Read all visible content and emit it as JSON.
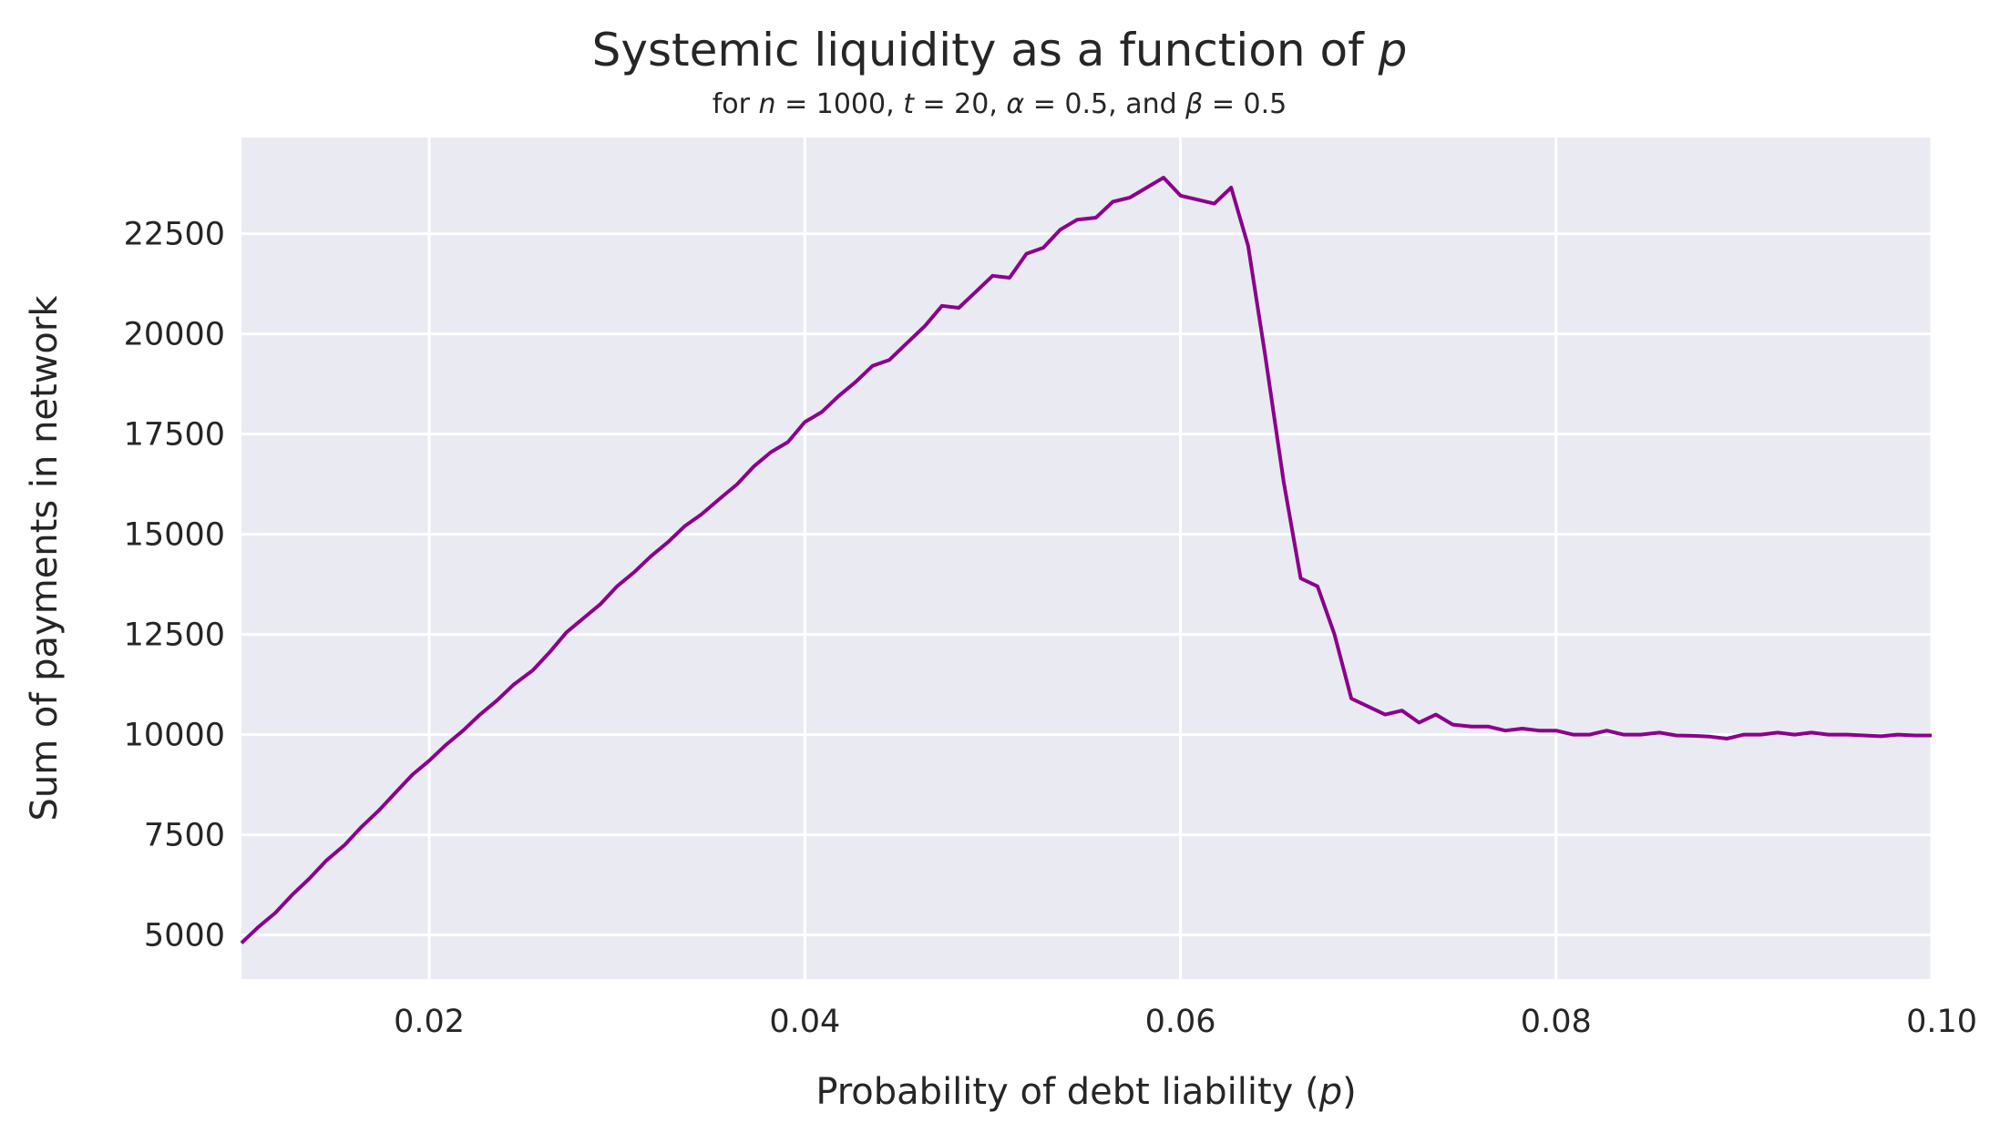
{
  "chart_data": {
    "type": "line",
    "title": "Systemic liquidity as a function of p",
    "subtitle": "for n = 1000, t = 20, α = 0.5, and β = 0.5",
    "xlabel": "Probability of debt liability (p)",
    "ylabel": "Sum of payments in network",
    "xlim": [
      0.01,
      0.1
    ],
    "ylim": [
      3900,
      24900
    ],
    "xticks": [
      "0.02",
      "0.04",
      "0.06",
      "0.08",
      "0.10"
    ],
    "yticks": [
      "5000",
      "7500",
      "10000",
      "12500",
      "15000",
      "17500",
      "20000",
      "22500"
    ],
    "grid": true,
    "background": "#eaeaf2",
    "line_color": "#8b008b",
    "series": [
      {
        "x": [
          0.01,
          0.0109,
          0.0118,
          0.0127,
          0.0136,
          0.0145,
          0.0155,
          0.0164,
          0.0173,
          0.0182,
          0.0191,
          0.02,
          0.0209,
          0.0218,
          0.0227,
          0.0236,
          0.0245,
          0.0255,
          0.0264,
          0.0273,
          0.0282,
          0.0291,
          0.03,
          0.0309,
          0.0318,
          0.0327,
          0.0336,
          0.0345,
          0.0355,
          0.0364,
          0.0373,
          0.0382,
          0.0391,
          0.04,
          0.0409,
          0.0418,
          0.0427,
          0.0436,
          0.0445,
          0.0455,
          0.0464,
          0.0473,
          0.0482,
          0.0491,
          0.05,
          0.0509,
          0.0518,
          0.0527,
          0.0536,
          0.0545,
          0.0555,
          0.0564,
          0.0573,
          0.0582,
          0.0591,
          0.06,
          0.0609,
          0.0618,
          0.0627,
          0.0636,
          0.0645,
          0.0655,
          0.0664,
          0.0673,
          0.0682,
          0.0691,
          0.07,
          0.0709,
          0.0718,
          0.0727,
          0.0736,
          0.0745,
          0.0755,
          0.0764,
          0.0773,
          0.0782,
          0.0791,
          0.08,
          0.0809,
          0.0818,
          0.0827,
          0.0836,
          0.0845,
          0.0855,
          0.0864,
          0.0873,
          0.0882,
          0.0891,
          0.09,
          0.0909,
          0.0918,
          0.0927,
          0.0936,
          0.0945,
          0.0955,
          0.0964,
          0.0973,
          0.0982,
          0.0991,
          0.1
        ],
        "y": [
          4800,
          5200,
          5550,
          6000,
          6400,
          6850,
          7250,
          7700,
          8100,
          8550,
          9000,
          9350,
          9750,
          10100,
          10500,
          10850,
          11250,
          11600,
          12050,
          12550,
          12900,
          13250,
          13700,
          14050,
          14450,
          14800,
          15200,
          15500,
          15900,
          16250,
          16700,
          17050,
          17300,
          17800,
          18050,
          18450,
          18800,
          19200,
          19350,
          19800,
          20200,
          20700,
          20650,
          21050,
          21450,
          21400,
          22000,
          22150,
          22600,
          22850,
          22900,
          23300,
          23400,
          23650,
          23900,
          23450,
          23350,
          23250,
          23650,
          22200,
          19500,
          16300,
          13900,
          13700,
          12500,
          10900,
          10700,
          10500,
          10600,
          10300,
          10500,
          10250,
          10200,
          10200,
          10100,
          10150,
          10100,
          10100,
          10000,
          10000,
          10100,
          10000,
          10000,
          10050,
          9980,
          9970,
          9950,
          9900,
          10000,
          10000,
          10050,
          10000,
          10050,
          10000,
          10000,
          9980,
          9960,
          10000,
          9980,
          9980
        ]
      }
    ]
  }
}
